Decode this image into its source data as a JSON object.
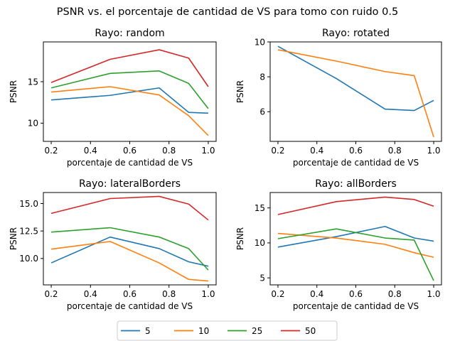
{
  "figure_title": "PSNR vs. el porcentaje de cantidad de VS para tomo con ruido 0.5",
  "colors": {
    "5": "#1f77b4",
    "10": "#ff7f0e",
    "25": "#2ca02c",
    "50": "#d62728"
  },
  "legend": {
    "placement": "bottom-center",
    "entries": [
      "5",
      "10",
      "25",
      "50"
    ]
  },
  "chart_data": [
    {
      "type": "line",
      "title": "Rayo: random",
      "xlabel": "porcentaje de cantidad de VS",
      "ylabel": "PSNR",
      "xlim": [
        0.16,
        1.04
      ],
      "ylim": [
        7.8,
        19.8
      ],
      "xticks": [
        0.2,
        0.4,
        0.6,
        0.8,
        1.0
      ],
      "xtick_labels": [
        "0.2",
        "0.4",
        "0.6",
        "0.8",
        "1.0"
      ],
      "yticks": [
        10,
        15
      ],
      "ytick_labels": [
        "10",
        "15"
      ],
      "x": [
        0.2,
        0.5,
        0.75,
        0.9,
        1.0
      ],
      "series": [
        {
          "name": "5",
          "values": [
            12.8,
            13.35,
            14.25,
            11.3,
            11.2
          ]
        },
        {
          "name": "10",
          "values": [
            13.75,
            14.4,
            13.4,
            10.9,
            8.5
          ]
        },
        {
          "name": "25",
          "values": [
            14.25,
            16.0,
            16.3,
            14.8,
            11.75
          ]
        },
        {
          "name": "50",
          "values": [
            14.9,
            17.7,
            18.85,
            17.85,
            14.4
          ]
        }
      ]
    },
    {
      "type": "line",
      "title": "Rayo: rotated",
      "xlabel": "porcentaje de cantidad de VS",
      "ylabel": "PSNR",
      "xlim": [
        0.16,
        1.04
      ],
      "ylim": [
        4.3,
        10.0
      ],
      "xticks": [
        0.2,
        0.4,
        0.6,
        0.8,
        1.0
      ],
      "xtick_labels": [
        "0.2",
        "0.4",
        "0.6",
        "0.8",
        "1.0"
      ],
      "yticks": [
        6,
        8,
        10
      ],
      "ytick_labels": [
        "6",
        "8",
        "10"
      ],
      "x": [
        0.2,
        0.5,
        0.75,
        0.9,
        1.0
      ],
      "series": [
        {
          "name": "5",
          "values": [
            9.75,
            7.9,
            6.15,
            6.07,
            6.65
          ]
        },
        {
          "name": "10",
          "values": [
            9.55,
            8.9,
            8.3,
            8.07,
            4.55
          ]
        }
      ]
    },
    {
      "type": "line",
      "title": "Rayo: lateralBorders",
      "xlabel": "porcentaje de cantidad de VS",
      "ylabel": "PSNR",
      "xlim": [
        0.16,
        1.04
      ],
      "ylim": [
        7.6,
        16.0
      ],
      "xticks": [
        0.2,
        0.4,
        0.6,
        0.8,
        1.0
      ],
      "xtick_labels": [
        "0.2",
        "0.4",
        "0.6",
        "0.8",
        "1.0"
      ],
      "yticks": [
        10.0,
        12.5,
        15.0
      ],
      "ytick_labels": [
        "10.0",
        "12.5",
        "15.0"
      ],
      "x": [
        0.2,
        0.5,
        0.75,
        0.9,
        1.0
      ],
      "series": [
        {
          "name": "5",
          "values": [
            9.6,
            11.95,
            10.9,
            9.7,
            9.3
          ]
        },
        {
          "name": "10",
          "values": [
            10.85,
            11.55,
            9.6,
            8.1,
            7.95
          ]
        },
        {
          "name": "25",
          "values": [
            12.4,
            12.8,
            11.95,
            10.9,
            8.95
          ]
        },
        {
          "name": "50",
          "values": [
            14.1,
            15.45,
            15.65,
            14.95,
            13.5
          ]
        }
      ]
    },
    {
      "type": "line",
      "title": "Rayo: allBorders",
      "xlabel": "porcentaje de cantidad de VS",
      "ylabel": "PSNR",
      "xlim": [
        0.16,
        1.04
      ],
      "ylim": [
        4.0,
        17.2
      ],
      "xticks": [
        0.2,
        0.4,
        0.6,
        0.8,
        1.0
      ],
      "xtick_labels": [
        "0.2",
        "0.4",
        "0.6",
        "0.8",
        "1.0"
      ],
      "yticks": [
        5,
        10,
        15
      ],
      "ytick_labels": [
        "5",
        "10",
        "15"
      ],
      "x": [
        0.2,
        0.5,
        0.75,
        0.9,
        1.0
      ],
      "series": [
        {
          "name": "5",
          "values": [
            9.4,
            10.9,
            12.35,
            10.7,
            10.25
          ]
        },
        {
          "name": "10",
          "values": [
            11.35,
            10.7,
            9.8,
            8.6,
            7.95
          ]
        },
        {
          "name": "25",
          "values": [
            10.6,
            12.0,
            10.7,
            10.4,
            4.6
          ]
        },
        {
          "name": "50",
          "values": [
            14.05,
            15.9,
            16.55,
            16.2,
            15.25
          ]
        }
      ]
    }
  ]
}
